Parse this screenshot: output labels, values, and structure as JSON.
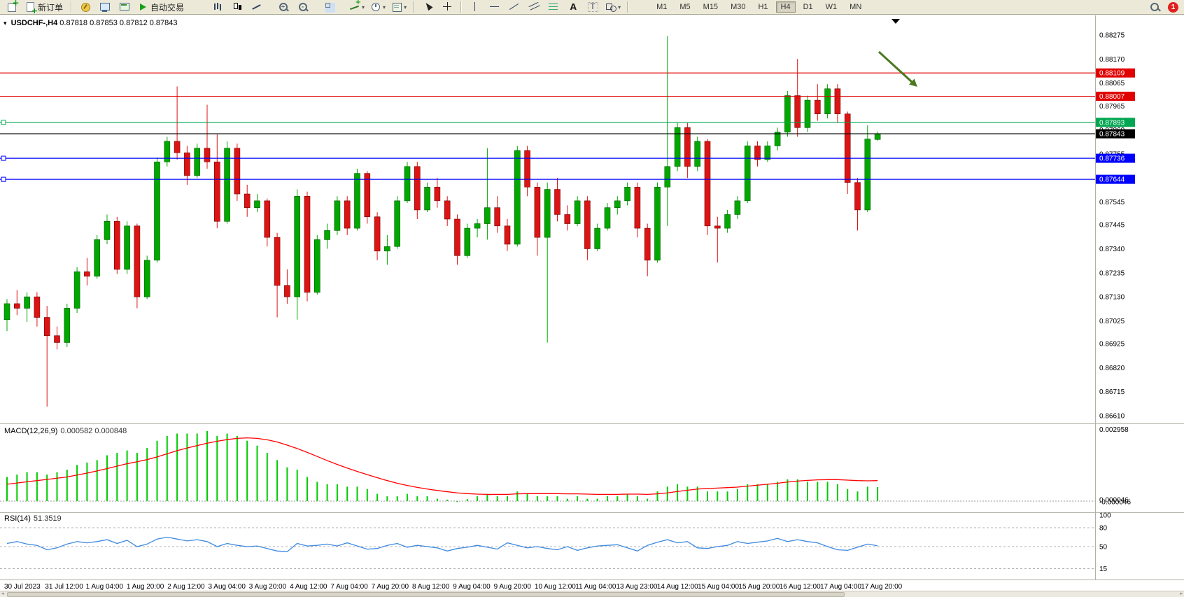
{
  "toolbar": {
    "new_order_label": "新订单",
    "auto_trading_label": "自动交易",
    "timeframes": [
      "M1",
      "M5",
      "M15",
      "M30",
      "H1",
      "H4",
      "D1",
      "W1",
      "MN"
    ],
    "active_timeframe": "H4",
    "notification_count": "1",
    "items": [
      {
        "type": "icon",
        "name": "new-chart-icon",
        "cls": "ic-chartadd"
      },
      {
        "type": "button",
        "name": "new-order-button",
        "cls": "ic-paperplus",
        "label": "新订单"
      },
      {
        "type": "sep"
      },
      {
        "type": "icon",
        "name": "favorites-icon",
        "cls": "ic-compass"
      },
      {
        "type": "icon",
        "name": "profile-icon",
        "cls": "ic-monitor"
      },
      {
        "type": "icon",
        "name": "market-watch-icon",
        "cls": "ic-monitor2"
      },
      {
        "type": "button",
        "name": "auto-trading-button",
        "cls": "ic-play",
        "label": "自动交易"
      },
      {
        "type": "space",
        "w": 26
      },
      {
        "type": "icon",
        "name": "bar-chart-type-icon",
        "cls": "ic-bars"
      },
      {
        "type": "icon",
        "name": "candlestick-chart-type-icon",
        "cls": "ic-candle"
      },
      {
        "type": "icon",
        "name": "line-chart-type-icon",
        "cls": "ic-linechart"
      },
      {
        "type": "space",
        "w": 8
      },
      {
        "type": "icon",
        "name": "zoom-in-icon",
        "cls": "ic-zoomin"
      },
      {
        "type": "icon",
        "name": "zoom-out-icon",
        "cls": "ic-zoomout"
      },
      {
        "type": "space",
        "w": 8
      },
      {
        "type": "icon",
        "name": "tile-windows-icon",
        "cls": "ic-tile"
      },
      {
        "type": "space",
        "w": 8
      },
      {
        "type": "icon",
        "name": "indicators-icon",
        "cls": "ic-indicators",
        "arrow": true
      },
      {
        "type": "icon",
        "name": "periods-icon",
        "cls": "ic-clock",
        "arrow": true
      },
      {
        "type": "icon",
        "name": "templates-icon",
        "cls": "ic-template",
        "arrow": true
      },
      {
        "type": "sep"
      },
      {
        "type": "icon",
        "name": "cursor-icon",
        "cls": "ic-cursor"
      },
      {
        "type": "icon",
        "name": "crosshair-icon",
        "cls": "ic-cross"
      },
      {
        "type": "sep"
      },
      {
        "type": "icon",
        "name": "vertical-line-icon",
        "cls": "ic-vline"
      },
      {
        "type": "icon",
        "name": "horizontal-line-icon",
        "cls": "ic-hline"
      },
      {
        "type": "icon",
        "name": "trendline-icon",
        "cls": "ic-tline"
      },
      {
        "type": "icon",
        "name": "equidistant-channel-icon",
        "cls": "ic-channel"
      },
      {
        "type": "icon",
        "name": "fibonacci-icon",
        "cls": "ic-fibo"
      },
      {
        "type": "icon",
        "name": "text-icon",
        "cls": "ic-text"
      },
      {
        "type": "icon",
        "name": "text-label-icon",
        "cls": "ic-label"
      },
      {
        "type": "icon",
        "name": "shapes-icon",
        "cls": "ic-shapes",
        "arrow": true
      },
      {
        "type": "sep"
      },
      {
        "type": "space",
        "w": 24
      }
    ]
  },
  "chart": {
    "title": "USDCHF-,H4",
    "ohlc_text": "0.87818 0.87853 0.87812 0.87843",
    "price_axis": {
      "labels": [
        "0.88275",
        "0.88170",
        "0.88065",
        "0.87965",
        "0.87860",
        "0.87755",
        "0.87650",
        "0.87545",
        "0.87445",
        "0.87340",
        "0.87235",
        "0.87130",
        "0.87025",
        "0.86925",
        "0.86820",
        "0.86715",
        "0.86610"
      ]
    },
    "hlines": [
      {
        "name": "resistance-line-upper",
        "price": 0.88109,
        "label": "0.88109",
        "color": "#e00000",
        "handle": false
      },
      {
        "name": "resistance-line-lower",
        "price": 0.88007,
        "label": "0.88007",
        "color": "#e00000",
        "handle": false
      },
      {
        "name": "support-line-green",
        "price": 0.87893,
        "label": "0.87893",
        "color": "#00a651",
        "handle": true
      },
      {
        "name": "current-price-line",
        "price": 0.87843,
        "label": "0.87843",
        "color": "#000000",
        "handle": false
      },
      {
        "name": "support-line-blue-upper",
        "price": 0.87736,
        "label": "0.87736",
        "color": "#0000ff",
        "handle": true
      },
      {
        "name": "support-line-blue-lower",
        "price": 0.87644,
        "label": "0.87644",
        "color": "#0000ff",
        "handle": true
      }
    ],
    "arrow": {
      "color": "#4a7a1e"
    },
    "dates": [
      "30 Jul 2023",
      "31 Jul 12:00",
      "1 Aug 04:00",
      "1 Aug 20:00",
      "2 Aug 12:00",
      "3 Aug 04:00",
      "3 Aug 20:00",
      "4 Aug 12:00",
      "7 Aug 04:00",
      "7 Aug 20:00",
      "8 Aug 12:00",
      "9 Aug 04:00",
      "9 Aug 20:00",
      "10 Aug 12:00",
      "11 Aug 04:00",
      "13 Aug 23:00",
      "14 Aug 12:00",
      "15 Aug 04:00",
      "15 Aug 20:00",
      "16 Aug 12:00",
      "17 Aug 04:00",
      "17 Aug 20:00"
    ]
  },
  "macd": {
    "label": "MACD(12,26,9)",
    "values_text": "0.000582 0.000848",
    "axis_labels": [
      "0.002958",
      "0.000046",
      "-0.000046"
    ]
  },
  "rsi": {
    "label": "RSI(14)",
    "value_text": "51.3519",
    "axis_labels": [
      100,
      80,
      50,
      15
    ],
    "level_lines": [
      80,
      50,
      15
    ]
  },
  "chart_data": [
    {
      "type": "candlestick",
      "title": "USDCHF-,H4",
      "ylim": [
        0.8661,
        0.88275
      ],
      "up_color": "#00a800",
      "down_color": "#dc1414",
      "hline_prices": [
        0.88109,
        0.88007,
        0.87893,
        0.87843,
        0.87736,
        0.87644
      ],
      "candles": [
        [
          0.8703,
          0.8712,
          0.8698,
          0.871
        ],
        [
          0.871,
          0.8716,
          0.8705,
          0.8708
        ],
        [
          0.8708,
          0.8715,
          0.8702,
          0.8713
        ],
        [
          0.8713,
          0.8715,
          0.87,
          0.8704
        ],
        [
          0.8704,
          0.8709,
          0.8665,
          0.8696
        ],
        [
          0.8696,
          0.87,
          0.869,
          0.8693
        ],
        [
          0.8693,
          0.871,
          0.8691,
          0.8708
        ],
        [
          0.8708,
          0.8726,
          0.8706,
          0.8724
        ],
        [
          0.8724,
          0.873,
          0.8718,
          0.8722
        ],
        [
          0.8722,
          0.874,
          0.8721,
          0.8738
        ],
        [
          0.8738,
          0.8749,
          0.8736,
          0.8746
        ],
        [
          0.8746,
          0.8748,
          0.8723,
          0.8725
        ],
        [
          0.8725,
          0.8746,
          0.8723,
          0.8744
        ],
        [
          0.8744,
          0.8745,
          0.8708,
          0.8713
        ],
        [
          0.8713,
          0.8731,
          0.8712,
          0.8729
        ],
        [
          0.8729,
          0.8774,
          0.8728,
          0.8772
        ],
        [
          0.8772,
          0.8783,
          0.877,
          0.8781
        ],
        [
          0.8781,
          0.8805,
          0.8773,
          0.8776
        ],
        [
          0.8776,
          0.8779,
          0.8762,
          0.8766
        ],
        [
          0.8766,
          0.878,
          0.8765,
          0.8778
        ],
        [
          0.8778,
          0.8797,
          0.8769,
          0.8772
        ],
        [
          0.8772,
          0.8784,
          0.8743,
          0.8746
        ],
        [
          0.8746,
          0.8781,
          0.8745,
          0.8778
        ],
        [
          0.8778,
          0.878,
          0.8755,
          0.8758
        ],
        [
          0.8758,
          0.8762,
          0.8748,
          0.8752
        ],
        [
          0.8752,
          0.8758,
          0.875,
          0.8755
        ],
        [
          0.8755,
          0.8756,
          0.8735,
          0.8739
        ],
        [
          0.8739,
          0.8741,
          0.8704,
          0.8718
        ],
        [
          0.8718,
          0.8725,
          0.871,
          0.8713
        ],
        [
          0.8713,
          0.876,
          0.8703,
          0.8757
        ],
        [
          0.8757,
          0.8759,
          0.8711,
          0.8715
        ],
        [
          0.8715,
          0.874,
          0.8714,
          0.8738
        ],
        [
          0.8738,
          0.8745,
          0.8734,
          0.8742
        ],
        [
          0.8742,
          0.8757,
          0.874,
          0.8755
        ],
        [
          0.8755,
          0.8757,
          0.874,
          0.8743
        ],
        [
          0.8743,
          0.8769,
          0.8742,
          0.8767
        ],
        [
          0.8767,
          0.8768,
          0.8745,
          0.8748
        ],
        [
          0.8748,
          0.875,
          0.8729,
          0.8733
        ],
        [
          0.8733,
          0.874,
          0.8727,
          0.8735
        ],
        [
          0.8735,
          0.8757,
          0.8734,
          0.8755
        ],
        [
          0.8755,
          0.8772,
          0.8754,
          0.877
        ],
        [
          0.877,
          0.8772,
          0.8747,
          0.8751
        ],
        [
          0.8751,
          0.8763,
          0.875,
          0.8761
        ],
        [
          0.8761,
          0.8765,
          0.8752,
          0.8755
        ],
        [
          0.8755,
          0.8757,
          0.8744,
          0.8747
        ],
        [
          0.8747,
          0.8749,
          0.8727,
          0.8731
        ],
        [
          0.8731,
          0.8745,
          0.873,
          0.8743
        ],
        [
          0.8743,
          0.8747,
          0.8739,
          0.8745
        ],
        [
          0.8745,
          0.8778,
          0.8738,
          0.8752
        ],
        [
          0.8752,
          0.8757,
          0.8741,
          0.8744
        ],
        [
          0.8744,
          0.8747,
          0.8733,
          0.8736
        ],
        [
          0.8736,
          0.8779,
          0.8735,
          0.8777
        ],
        [
          0.8777,
          0.8779,
          0.8757,
          0.8761
        ],
        [
          0.8761,
          0.8763,
          0.8731,
          0.8739
        ],
        [
          0.8739,
          0.8763,
          0.8693,
          0.876
        ],
        [
          0.876,
          0.8765,
          0.8746,
          0.8749
        ],
        [
          0.8749,
          0.8753,
          0.8742,
          0.8745
        ],
        [
          0.8745,
          0.8757,
          0.8744,
          0.8755
        ],
        [
          0.8755,
          0.8757,
          0.8729,
          0.8734
        ],
        [
          0.8734,
          0.8745,
          0.8733,
          0.8743
        ],
        [
          0.8743,
          0.8754,
          0.8742,
          0.8752
        ],
        [
          0.8752,
          0.8757,
          0.8749,
          0.8755
        ],
        [
          0.8755,
          0.8763,
          0.8753,
          0.8761
        ],
        [
          0.8761,
          0.8763,
          0.8739,
          0.8743
        ],
        [
          0.8743,
          0.8745,
          0.8722,
          0.8729
        ],
        [
          0.8729,
          0.8763,
          0.8728,
          0.8761
        ],
        [
          0.8761,
          0.8827,
          0.8744,
          0.877
        ],
        [
          0.877,
          0.8789,
          0.8768,
          0.8787
        ],
        [
          0.8787,
          0.8789,
          0.8765,
          0.877
        ],
        [
          0.877,
          0.8783,
          0.8768,
          0.8781
        ],
        [
          0.8781,
          0.8782,
          0.874,
          0.8744
        ],
        [
          0.8744,
          0.8748,
          0.8728,
          0.8743
        ],
        [
          0.8743,
          0.8751,
          0.8741,
          0.8749
        ],
        [
          0.8749,
          0.8757,
          0.8747,
          0.8755
        ],
        [
          0.8755,
          0.8781,
          0.8754,
          0.8779
        ],
        [
          0.8779,
          0.8781,
          0.877,
          0.8773
        ],
        [
          0.8773,
          0.8781,
          0.8772,
          0.8779
        ],
        [
          0.8779,
          0.8787,
          0.8777,
          0.8785
        ],
        [
          0.8785,
          0.8803,
          0.8783,
          0.8801
        ],
        [
          0.8801,
          0.8817,
          0.8783,
          0.8787
        ],
        [
          0.8787,
          0.8801,
          0.8785,
          0.8799
        ],
        [
          0.8799,
          0.8806,
          0.879,
          0.8793
        ],
        [
          0.8793,
          0.8806,
          0.8791,
          0.8804
        ],
        [
          0.8804,
          0.8806,
          0.8789,
          0.8793
        ],
        [
          0.8793,
          0.8794,
          0.8758,
          0.8763
        ],
        [
          0.8763,
          0.8765,
          0.8742,
          0.8751
        ],
        [
          0.8751,
          0.8788,
          0.875,
          0.8782
        ],
        [
          0.87818,
          0.87853,
          0.87812,
          0.87843
        ]
      ]
    },
    {
      "type": "bar",
      "title": "MACD(12,26,9)",
      "ylim": [
        -0.0002,
        0.002958
      ],
      "bar_color": "#00cc00",
      "signal_color": "#ff0000",
      "values": [
        0.001,
        0.0011,
        0.0012,
        0.0012,
        0.0011,
        0.0012,
        0.0013,
        0.0015,
        0.0016,
        0.0017,
        0.0019,
        0.002,
        0.0021,
        0.002,
        0.0022,
        0.0025,
        0.0027,
        0.0028,
        0.0028,
        0.0028,
        0.0029,
        0.0027,
        0.0028,
        0.0027,
        0.0025,
        0.0023,
        0.002,
        0.0017,
        0.0014,
        0.0013,
        0.001,
        0.0008,
        0.0007,
        0.0007,
        0.0006,
        0.0006,
        0.0005,
        0.0003,
        0.0002,
        0.0002,
        0.0003,
        0.0002,
        0.0002,
        0.0001,
        6e-05,
        -4e-05,
        8e-05,
        0.0002,
        0.0003,
        0.0002,
        0.0002,
        0.0004,
        0.0003,
        0.0002,
        0.0002,
        0.0002,
        0.0001,
        0.0002,
        0.0001,
        0.0001,
        0.0002,
        0.0002,
        0.0003,
        0.0002,
        0.0001,
        0.0004,
        0.0006,
        0.0007,
        0.0006,
        0.0006,
        0.0004,
        0.0004,
        0.0004,
        0.0005,
        0.0007,
        0.0007,
        0.0007,
        0.0008,
        0.0009,
        0.0009,
        0.0008,
        0.0008,
        0.0008,
        0.0007,
        0.0005,
        0.0004,
        0.0006,
        0.00058
      ],
      "signal": [
        0.0007,
        0.00075,
        0.0008,
        0.00085,
        0.0009,
        0.00095,
        0.001,
        0.00108,
        0.00116,
        0.00125,
        0.00135,
        0.00145,
        0.00155,
        0.00163,
        0.00172,
        0.00183,
        0.00196,
        0.00209,
        0.0022,
        0.0023,
        0.0024,
        0.00248,
        0.00255,
        0.0026,
        0.00262,
        0.0026,
        0.00254,
        0.00245,
        0.00232,
        0.00218,
        0.00202,
        0.00185,
        0.00168,
        0.00152,
        0.00137,
        0.00123,
        0.0011,
        0.00097,
        0.00085,
        0.00074,
        0.00065,
        0.00057,
        0.0005,
        0.00044,
        0.00039,
        0.00034,
        0.00031,
        0.00029,
        0.00028,
        0.00028,
        0.00028,
        0.0003,
        0.00031,
        0.00031,
        0.00031,
        0.00031,
        0.0003,
        0.0003,
        0.00029,
        0.00028,
        0.00028,
        0.00028,
        0.00029,
        0.00029,
        0.00028,
        0.0003,
        0.00034,
        0.0004,
        0.00045,
        0.0005,
        0.00052,
        0.00054,
        0.00056,
        0.00058,
        0.00062,
        0.00066,
        0.0007,
        0.00074,
        0.00079,
        0.00083,
        0.00086,
        0.00088,
        0.00089,
        0.00089,
        0.00087,
        0.00085,
        0.00084,
        0.00085
      ]
    },
    {
      "type": "line",
      "title": "RSI(14)",
      "ylim": [
        0,
        100
      ],
      "color": "#3f8ae0",
      "values": [
        55,
        58,
        54,
        52,
        45,
        48,
        54,
        58,
        56,
        58,
        61,
        55,
        60,
        50,
        54,
        62,
        65,
        62,
        59,
        61,
        58,
        50,
        55,
        52,
        50,
        51,
        47,
        43,
        42,
        55,
        51,
        52,
        54,
        51,
        56,
        51,
        46,
        47,
        52,
        55,
        49,
        52,
        50,
        48,
        43,
        47,
        49,
        52,
        49,
        46,
        56,
        52,
        48,
        50,
        47,
        45,
        50,
        44,
        48,
        51,
        52,
        53,
        48,
        43,
        52,
        57,
        61,
        56,
        58,
        48,
        47,
        50,
        52,
        58,
        55,
        57,
        59,
        63,
        58,
        61,
        58,
        56,
        50,
        45,
        44,
        49,
        54,
        51.35
      ]
    }
  ]
}
